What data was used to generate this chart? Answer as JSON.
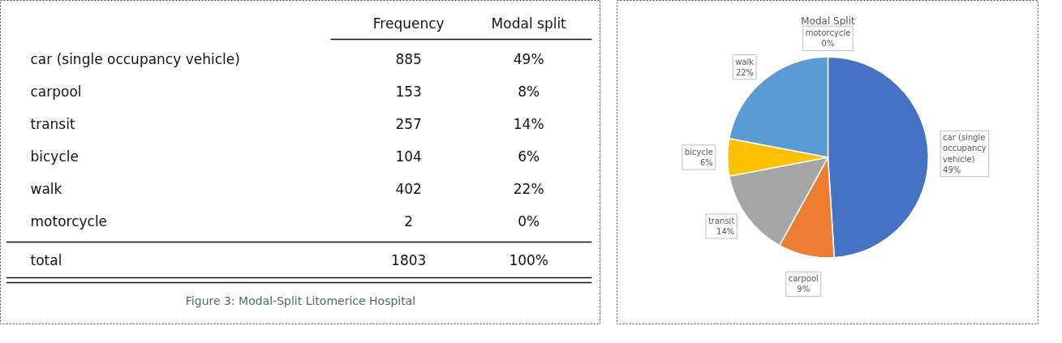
{
  "chart_data": [
    {
      "type": "other",
      "categories": [
        "car (single occupancy vehicle)",
        "carpool",
        "transit",
        "bicycle",
        "walk",
        "motorcycle"
      ],
      "series": [
        {
          "name": "Frequency",
          "values": [
            885,
            153,
            257,
            104,
            402,
            2
          ]
        },
        {
          "name": "Modal split",
          "values": [
            49,
            8,
            14,
            6,
            22,
            0
          ],
          "value_labels": [
            "49%",
            "8%",
            "14%",
            "6%",
            "22%",
            "0%"
          ]
        }
      ],
      "data_labels": true,
      "totals": [
        "1803",
        "100%"
      ],
      "annotations": [
        "total",
        "Figure 3: Modal-Split Litomerice Hospital"
      ]
    },
    {
      "type": "pie",
      "title": "Modal Split",
      "categories": [
        "car (single occupancy vehicle)",
        "carpool",
        "transit",
        "bicycle",
        "walk",
        "motorcycle"
      ],
      "values": [
        49,
        9,
        14,
        6,
        22,
        0
      ],
      "colors": [
        "#4472c4",
        "#ed7d31",
        "#a5a5a5",
        "#ffc000",
        "#5b9bd5",
        "#70ad47"
      ],
      "value_labels": [
        "49%",
        "9%",
        "14%",
        "6%",
        "22%",
        "0%"
      ]
    }
  ]
}
